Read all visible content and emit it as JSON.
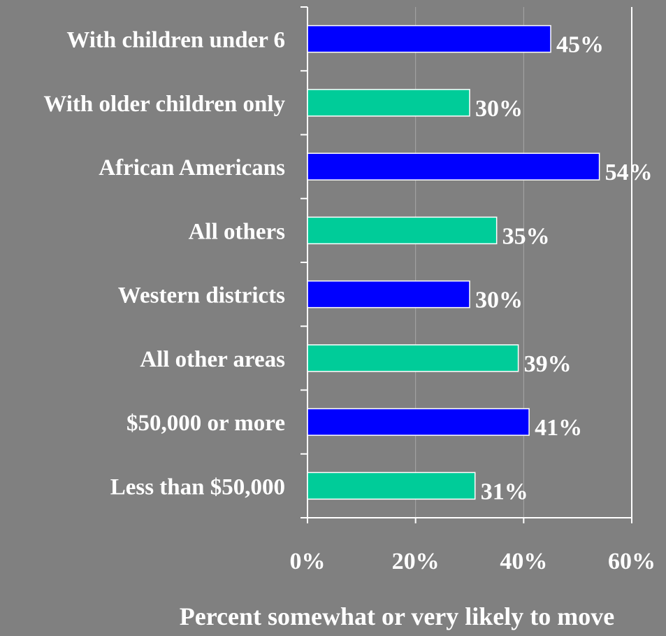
{
  "chart_data": {
    "type": "bar",
    "orientation": "horizontal",
    "categories": [
      "With children under 6",
      "With older children only",
      "African Americans",
      "All others",
      "Western districts",
      "All other areas",
      "$50,000 or more",
      "Less than $50,000"
    ],
    "values": [
      45,
      30,
      54,
      35,
      30,
      39,
      41,
      31
    ],
    "value_labels": [
      "45%",
      "30%",
      "54%",
      "35%",
      "30%",
      "39%",
      "41%",
      "31%"
    ],
    "bar_colors": [
      "#0000ff",
      "#00cc99",
      "#0000ff",
      "#00cc99",
      "#0000ff",
      "#00cc99",
      "#0000ff",
      "#00cc99"
    ],
    "xlim": [
      0,
      60
    ],
    "xticks": [
      0,
      20,
      40,
      60
    ],
    "xtick_labels": [
      "0%",
      "20%",
      "40%",
      "60%"
    ],
    "xlabel": "Percent somewhat or very likely to move",
    "title": "",
    "grid": "vertical",
    "legend": "none",
    "colors": {
      "background": "#808080",
      "text": "#ffffff",
      "gridline": "#a6a6a6",
      "axis": "#ffffff"
    }
  }
}
